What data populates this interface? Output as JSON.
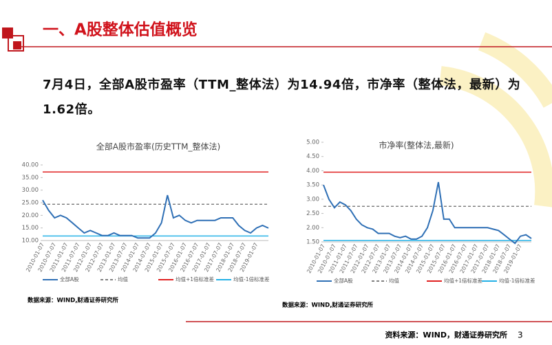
{
  "header": {
    "title": "一、A股整体估值概览"
  },
  "body": {
    "text": "7月4日，全部A股市盈率（TTM_整体法）为14.94倍，市净率（整体法，最新）为1.62倍。"
  },
  "footer": {
    "source": "资料来源：WIND，财通证券研究所",
    "page": "3"
  },
  "chart_data": [
    {
      "type": "line",
      "title": "全部A股市盈率(历史TTM_整体法)",
      "source": "数据来源：WIND,财通证券研究所",
      "categories": [
        "2010-01-07",
        null,
        "2010-07-07",
        null,
        "2011-01-07",
        null,
        "2011-07-07",
        null,
        "2012-01-07",
        null,
        "2012-07-07",
        null,
        "2013-01-07",
        null,
        "2013-07-07",
        null,
        "2014-01-07",
        null,
        "2014-07-07",
        null,
        "2015-01-07",
        null,
        "2015-07-07",
        null,
        "2016-01-07",
        null,
        "2016-07-07",
        null,
        "2017-01-07",
        null,
        "2017-07-07",
        null,
        "2018-01-07",
        null,
        "2018-07-07",
        null,
        "2019-01-07",
        null,
        null
      ],
      "ylim": [
        10,
        40
      ],
      "yticks": [
        {
          "value": 10,
          "label": "10.00"
        },
        {
          "value": 15,
          "label": "15.00"
        },
        {
          "value": 20,
          "label": "20.00"
        },
        {
          "value": 25,
          "label": "25.00"
        },
        {
          "value": 30,
          "label": "30.00"
        },
        {
          "value": 35,
          "label": "35.00"
        },
        {
          "value": 40,
          "label": "40.00"
        }
      ],
      "series": [
        {
          "name": "全部A股",
          "color": "#2e6fb5",
          "values": [
            26,
            22,
            19,
            20,
            19,
            17,
            15,
            13,
            14,
            13,
            12,
            12,
            13,
            12,
            12,
            12,
            11,
            11,
            11,
            13,
            17,
            28,
            19,
            20,
            18,
            17,
            18,
            18,
            18,
            18,
            19,
            19,
            19,
            16,
            14,
            13,
            15,
            16,
            14.94
          ]
        },
        {
          "name": "均值",
          "color": "#7f7f7f",
          "dashed": true,
          "values": [
            24.4,
            24.4,
            24.4,
            24.4,
            24.4,
            24.4,
            24.4,
            24.4,
            24.4,
            24.4,
            24.4,
            24.4,
            24.4,
            24.4,
            24.4,
            24.4,
            24.4,
            24.4,
            24.4,
            24.4,
            24.4,
            24.4,
            24.4,
            24.4,
            24.4,
            24.4,
            24.4,
            24.4,
            24.4,
            24.4,
            24.4,
            24.4,
            24.4,
            24.4,
            24.4,
            24.4,
            24.4,
            24.4,
            24.4
          ]
        },
        {
          "name": "均值+1倍标准差",
          "color": "#e02020",
          "values": [
            37.2,
            37.2,
            37.2,
            37.2,
            37.2,
            37.2,
            37.2,
            37.2,
            37.2,
            37.2,
            37.2,
            37.2,
            37.2,
            37.2,
            37.2,
            37.2,
            37.2,
            37.2,
            37.2,
            37.2,
            37.2,
            37.2,
            37.2,
            37.2,
            37.2,
            37.2,
            37.2,
            37.2,
            37.2,
            37.2,
            37.2,
            37.2,
            37.2,
            37.2,
            37.2,
            37.2,
            37.2,
            37.2,
            37.2
          ]
        },
        {
          "name": "均值-1倍标准差",
          "color": "#22b0e6",
          "values": [
            11.8,
            11.8,
            11.8,
            11.8,
            11.8,
            11.8,
            11.8,
            11.8,
            11.8,
            11.8,
            11.8,
            11.8,
            11.8,
            11.8,
            11.8,
            11.8,
            11.8,
            11.8,
            11.8,
            11.8,
            11.8,
            11.8,
            11.8,
            11.8,
            11.8,
            11.8,
            11.8,
            11.8,
            11.8,
            11.8,
            11.8,
            11.8,
            11.8,
            11.8,
            11.8,
            11.8,
            11.8,
            11.8,
            11.8
          ]
        }
      ]
    },
    {
      "type": "line",
      "title": "市净率(整体法,最新)",
      "source": "数据来源：WIND,财通证券研究所",
      "categories": [
        "2010-01-07",
        null,
        "2010-07-07",
        null,
        "2011-01-07",
        null,
        "2011-07-07",
        null,
        "2012-01-07",
        null,
        "2012-07-07",
        null,
        "2013-01-07",
        null,
        "2013-07-07",
        null,
        "2014-01-07",
        null,
        "2014-07-07",
        null,
        "2015-01-07",
        null,
        "2015-07-07",
        null,
        "2016-01-07",
        null,
        "2016-07-07",
        null,
        "2017-01-07",
        null,
        "2017-07-07",
        null,
        "2018-01-07",
        null,
        "2018-07-07",
        null,
        "2019-01-07",
        null,
        null
      ],
      "ylim": [
        1.5,
        5
      ],
      "yticks": [
        {
          "value": 1.5,
          "label": "1.50"
        },
        {
          "value": 2,
          "label": "2.00"
        },
        {
          "value": 2.5,
          "label": "2.50"
        },
        {
          "value": 3,
          "label": "3.00"
        },
        {
          "value": 3.5,
          "label": "3.50"
        },
        {
          "value": 4,
          "label": "4.00"
        },
        {
          "value": 4.5,
          "label": "4.50"
        },
        {
          "value": 5,
          "label": "5.00"
        }
      ],
      "series": [
        {
          "name": "全部A股",
          "color": "#2e6fb5",
          "values": [
            3.5,
            3.0,
            2.7,
            2.9,
            2.8,
            2.6,
            2.3,
            2.1,
            2.0,
            1.95,
            1.8,
            1.8,
            1.8,
            1.7,
            1.65,
            1.7,
            1.6,
            1.6,
            1.7,
            2.0,
            2.6,
            3.6,
            2.3,
            2.3,
            2.0,
            2.0,
            2.0,
            2.0,
            2.0,
            2.0,
            2.0,
            1.95,
            1.9,
            1.75,
            1.6,
            1.45,
            1.7,
            1.75,
            1.62
          ]
        },
        {
          "name": "均值",
          "color": "#7f7f7f",
          "dashed": true,
          "values": [
            2.75,
            2.75,
            2.75,
            2.75,
            2.75,
            2.75,
            2.75,
            2.75,
            2.75,
            2.75,
            2.75,
            2.75,
            2.75,
            2.75,
            2.75,
            2.75,
            2.75,
            2.75,
            2.75,
            2.75,
            2.75,
            2.75,
            2.75,
            2.75,
            2.75,
            2.75,
            2.75,
            2.75,
            2.75,
            2.75,
            2.75,
            2.75,
            2.75,
            2.75,
            2.75,
            2.75,
            2.75,
            2.75,
            2.75
          ]
        },
        {
          "name": "均值+1倍标准差",
          "color": "#e02020",
          "values": [
            3.95,
            3.95,
            3.95,
            3.95,
            3.95,
            3.95,
            3.95,
            3.95,
            3.95,
            3.95,
            3.95,
            3.95,
            3.95,
            3.95,
            3.95,
            3.95,
            3.95,
            3.95,
            3.95,
            3.95,
            3.95,
            3.95,
            3.95,
            3.95,
            3.95,
            3.95,
            3.95,
            3.95,
            3.95,
            3.95,
            3.95,
            3.95,
            3.95,
            3.95,
            3.95,
            3.95,
            3.95,
            3.95,
            3.95
          ]
        },
        {
          "name": "均值-1倍标准差",
          "color": "#22b0e6",
          "values": [
            1.55,
            1.55,
            1.55,
            1.55,
            1.55,
            1.55,
            1.55,
            1.55,
            1.55,
            1.55,
            1.55,
            1.55,
            1.55,
            1.55,
            1.55,
            1.55,
            1.55,
            1.55,
            1.55,
            1.55,
            1.55,
            1.55,
            1.55,
            1.55,
            1.55,
            1.55,
            1.55,
            1.55,
            1.55,
            1.55,
            1.55,
            1.55,
            1.55,
            1.55,
            1.55,
            1.55,
            1.55,
            1.55,
            1.55
          ]
        }
      ]
    }
  ]
}
